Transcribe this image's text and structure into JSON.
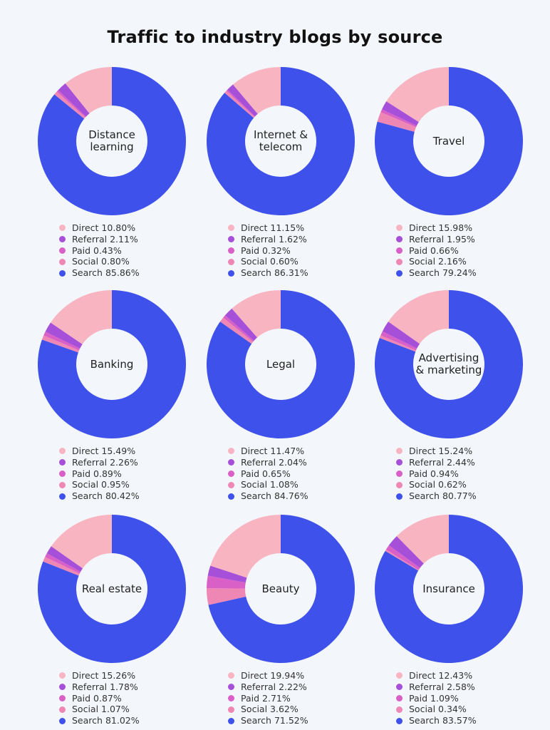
{
  "chart_data": {
    "type": "pie",
    "variant": "donut",
    "title": "Traffic to industry blogs by source",
    "categories": [
      "Direct",
      "Referral",
      "Paid",
      "Social",
      "Search"
    ],
    "colors": {
      "Direct": "#f9b4c1",
      "Referral": "#a64fd8",
      "Paid": "#d960c6",
      "Social": "#ef87b4",
      "Search": "#3f51eb"
    },
    "charts": [
      {
        "label": "Distance learning",
        "values": {
          "Direct": 10.8,
          "Referral": 2.11,
          "Paid": 0.43,
          "Social": 0.8,
          "Search": 85.86
        }
      },
      {
        "label": "Internet & telecom",
        "values": {
          "Direct": 11.15,
          "Referral": 1.62,
          "Paid": 0.32,
          "Social": 0.6,
          "Search": 86.31
        }
      },
      {
        "label": "Travel",
        "values": {
          "Direct": 15.98,
          "Referral": 1.95,
          "Paid": 0.66,
          "Social": 2.16,
          "Search": 79.24
        }
      },
      {
        "label": "Banking",
        "values": {
          "Direct": 15.49,
          "Referral": 2.26,
          "Paid": 0.89,
          "Social": 0.95,
          "Search": 80.42
        }
      },
      {
        "label": "Legal",
        "values": {
          "Direct": 11.47,
          "Referral": 2.04,
          "Paid": 0.65,
          "Social": 1.08,
          "Search": 84.76
        }
      },
      {
        "label": "Advertising & marketing",
        "values": {
          "Direct": 15.24,
          "Referral": 2.44,
          "Paid": 0.94,
          "Social": 0.62,
          "Search": 80.77
        }
      },
      {
        "label": "Real estate",
        "values": {
          "Direct": 15.26,
          "Referral": 1.78,
          "Paid": 0.87,
          "Social": 1.07,
          "Search": 81.02
        }
      },
      {
        "label": "Beauty",
        "values": {
          "Direct": 19.94,
          "Referral": 2.22,
          "Paid": 2.71,
          "Social": 3.62,
          "Search": 71.52
        }
      },
      {
        "label": "Insurance",
        "values": {
          "Direct": 12.43,
          "Referral": 2.58,
          "Paid": 1.09,
          "Social": 0.34,
          "Search": 83.57
        }
      }
    ],
    "legend": "below each chart"
  }
}
